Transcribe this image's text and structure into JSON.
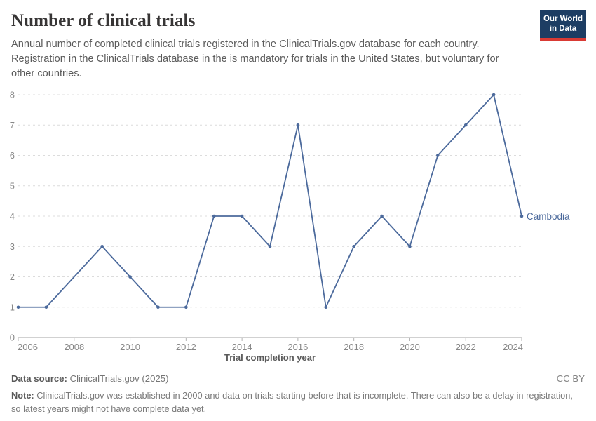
{
  "header": {
    "title": "Number of clinical trials",
    "subtitle": "Annual number of completed clinical trials registered in the ClinicalTrials.gov database for each country. Registration in the ClinicalTrials database in the is mandatory for trials in the United States, but voluntary for other countries.",
    "logo": {
      "line1": "Our World",
      "line2": "in Data",
      "bg_color": "#1d3d63",
      "accent_color": "#d93a34"
    }
  },
  "chart_data": {
    "type": "line",
    "title": "Number of clinical trials",
    "xlabel": "Trial completion year",
    "ylabel": "",
    "xlim": [
      2006,
      2024
    ],
    "ylim": [
      0,
      8
    ],
    "x_ticks": [
      2006,
      2008,
      2010,
      2012,
      2014,
      2016,
      2018,
      2020,
      2022,
      2024
    ],
    "y_ticks": [
      0,
      1,
      2,
      3,
      4,
      5,
      6,
      7,
      8
    ],
    "grid": "horizontal-dashed",
    "legend_position": "end-of-line",
    "missing_years": [
      2008
    ],
    "colors": {
      "grid": "#dcdcdc",
      "axis": "#a3a3a3",
      "tick_text": "#878787"
    },
    "series": [
      {
        "name": "Cambodia",
        "color": "#4c6a9c",
        "points": [
          [
            2006,
            1
          ],
          [
            2007,
            1
          ],
          [
            2009,
            3
          ],
          [
            2010,
            2
          ],
          [
            2011,
            1
          ],
          [
            2012,
            1
          ],
          [
            2013,
            4
          ],
          [
            2014,
            4
          ],
          [
            2015,
            3
          ],
          [
            2016,
            7
          ],
          [
            2017,
            1
          ],
          [
            2018,
            3
          ],
          [
            2019,
            4
          ],
          [
            2020,
            3
          ],
          [
            2021,
            6
          ],
          [
            2022,
            7
          ],
          [
            2023,
            8
          ],
          [
            2024,
            4
          ]
        ]
      }
    ]
  },
  "footer": {
    "source_label": "Data source:",
    "source_value": "ClinicalTrials.gov (2025)",
    "license": "CC BY",
    "note_label": "Note:",
    "note_text": "ClinicalTrials.gov was established in 2000 and data on trials starting before that is incomplete. There can also be a delay in registration, so latest years might not have complete data yet."
  }
}
